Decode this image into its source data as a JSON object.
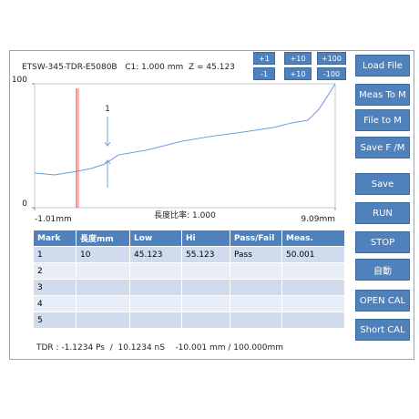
{
  "header": {
    "title": "ETSW-345-TDR-E5080B   C1: 1.000 mm  Z = 45.123"
  },
  "step_buttons": [
    {
      "label": "+1"
    },
    {
      "label": "+10"
    },
    {
      "label": "+100"
    },
    {
      "label": "-1"
    },
    {
      "label": "+10"
    },
    {
      "label": "-100"
    }
  ],
  "side_buttons": [
    {
      "label": "Load File"
    },
    {
      "label": "Meas To M"
    },
    {
      "label": "File  to M"
    },
    {
      "label": "Save F /M"
    },
    {
      "label": "Save"
    },
    {
      "label": "RUN"
    },
    {
      "label": "STOP"
    },
    {
      "label": "自動"
    },
    {
      "label": "OPEN CAL"
    },
    {
      "label": "Short CAL"
    }
  ],
  "chart": {
    "type": "line",
    "x_label": "長度比率: 1.000",
    "x": [
      -1.01,
      -0.34,
      0.43,
      0.89,
      1.35,
      1.81,
      2.72,
      3.34,
      3.95,
      4.87,
      5.78,
      6.4,
      7.01,
      7.62,
      8.17,
      8.54,
      8.84,
      9.09
    ],
    "values": [
      28,
      26.5,
      29.4,
      31.6,
      35.3,
      42.6,
      46.3,
      50,
      53.7,
      57.4,
      60.3,
      62.5,
      64.7,
      68.4,
      70.6,
      79.4,
      90.4,
      100
    ],
    "color": "#6d9be0",
    "xlim": [
      -1.01,
      9.09
    ],
    "xticks": [
      {
        "value": -1.01,
        "label": "-1.01mm"
      },
      {
        "value": 9.09,
        "label": "9.09mm"
      }
    ],
    "ylim": [
      0,
      100
    ],
    "yticks": [
      0,
      100
    ],
    "cursor": {
      "x": 0.4,
      "color": "#e03030"
    },
    "marker": {
      "label": "1",
      "x": 1.44
    }
  },
  "table": {
    "columns": [
      "Mark",
      "長度mm",
      "Low",
      "Hi",
      "Pass/Fail",
      "Meas."
    ],
    "rows": [
      [
        "1",
        "10",
        "45.123",
        "55.123",
        "Pass",
        "50.001"
      ],
      [
        "2"
      ],
      [
        "3"
      ],
      [
        "4"
      ],
      [
        "5"
      ]
    ]
  },
  "footer": {
    "text": "TDR : -1.1234 Ps  /  10.1234 nS    -10.001 mm / 100.000mm"
  }
}
